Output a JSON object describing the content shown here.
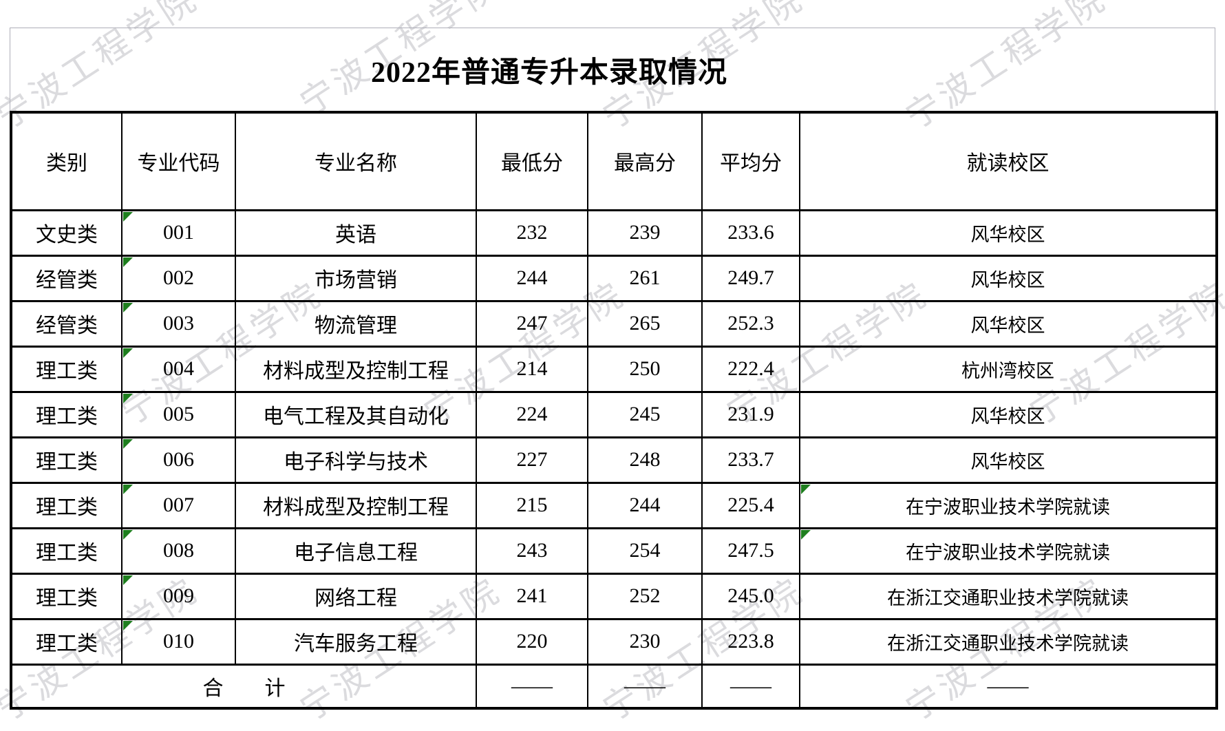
{
  "page": {
    "background": "#ffffff"
  },
  "watermark": {
    "text": "宁波工程学院",
    "color": "#c6c6cb"
  },
  "title": "2022年普通专升本录取情况",
  "table": {
    "headers": [
      "类别",
      "专业代码",
      "专业名称",
      "最低分",
      "最高分",
      "平均分",
      "就读校区"
    ],
    "rows": [
      {
        "category": "文史类",
        "code": "001",
        "major": "英语",
        "min": "232",
        "max": "239",
        "avg": "233.6",
        "campus": "风华校区",
        "code_marker": true,
        "campus_marker": false
      },
      {
        "category": "经管类",
        "code": "002",
        "major": "市场营销",
        "min": "244",
        "max": "261",
        "avg": "249.7",
        "campus": "风华校区",
        "code_marker": true,
        "campus_marker": false
      },
      {
        "category": "经管类",
        "code": "003",
        "major": "物流管理",
        "min": "247",
        "max": "265",
        "avg": "252.3",
        "campus": "风华校区",
        "code_marker": true,
        "campus_marker": false
      },
      {
        "category": "理工类",
        "code": "004",
        "major": "材料成型及控制工程",
        "min": "214",
        "max": "250",
        "avg": "222.4",
        "campus": "杭州湾校区",
        "code_marker": true,
        "campus_marker": false
      },
      {
        "category": "理工类",
        "code": "005",
        "major": "电气工程及其自动化",
        "min": "224",
        "max": "245",
        "avg": "231.9",
        "campus": "风华校区",
        "code_marker": true,
        "campus_marker": false
      },
      {
        "category": "理工类",
        "code": "006",
        "major": "电子科学与技术",
        "min": "227",
        "max": "248",
        "avg": "233.7",
        "campus": "风华校区",
        "code_marker": true,
        "campus_marker": false
      },
      {
        "category": "理工类",
        "code": "007",
        "major": "材料成型及控制工程",
        "min": "215",
        "max": "244",
        "avg": "225.4",
        "campus": "在宁波职业技术学院就读",
        "code_marker": true,
        "campus_marker": true
      },
      {
        "category": "理工类",
        "code": "008",
        "major": "电子信息工程",
        "min": "243",
        "max": "254",
        "avg": "247.5",
        "campus": "在宁波职业技术学院就读",
        "code_marker": true,
        "campus_marker": true
      },
      {
        "category": "理工类",
        "code": "009",
        "major": "网络工程",
        "min": "241",
        "max": "252",
        "avg": "245.0",
        "campus": "在浙江交通职业技术学院就读",
        "code_marker": true,
        "campus_marker": false
      },
      {
        "category": "理工类",
        "code": "010",
        "major": "汽车服务工程",
        "min": "220",
        "max": "230",
        "avg": "223.8",
        "campus": "在浙江交通职业技术学院就读",
        "code_marker": true,
        "campus_marker": false
      }
    ],
    "total": {
      "label": "合　　计",
      "min": "——",
      "max": "——",
      "avg": "——",
      "campus": "——"
    }
  },
  "colors": {
    "marker_green": "#1e7e1e",
    "border_black": "#000000",
    "title_box_gray": "#aeaeb8"
  }
}
